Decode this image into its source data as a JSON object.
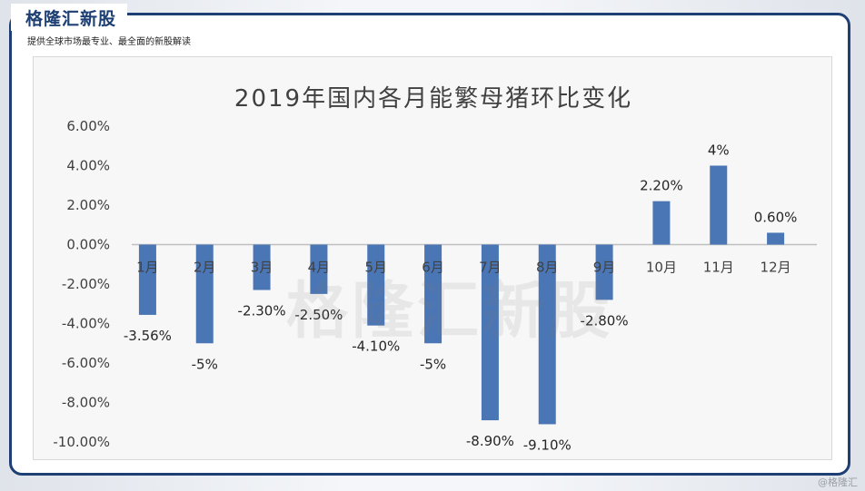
{
  "header": {
    "brand": "格隆汇新股",
    "subtitle": "提供全球市场最专业、最全面的新股解读"
  },
  "watermark": "格隆汇新股",
  "corner_watermark": "@格隆汇",
  "colors": {
    "bar": "#4a76b5",
    "frame": "#1d3f73",
    "axis": "#bfbfbf",
    "text": "#404040"
  },
  "chart_data": {
    "type": "bar",
    "title": "2019年国内各月能繁母猪环比变化",
    "categories": [
      "1月",
      "2月",
      "3月",
      "4月",
      "5月",
      "6月",
      "7月",
      "8月",
      "9月",
      "10月",
      "11月",
      "12月"
    ],
    "values": [
      -3.56,
      -5,
      -2.3,
      -2.5,
      -4.1,
      -5,
      -8.9,
      -9.1,
      -2.8,
      2.2,
      4,
      0.6
    ],
    "data_labels": [
      "-3.56%",
      "-5%",
      "-2.30%",
      "-2.50%",
      "-4.10%",
      "-5%",
      "-8.90%",
      "-9.10%",
      "-2.80%",
      "2.20%",
      "4%",
      "0.60%"
    ],
    "yticks": [
      "6.00%",
      "4.00%",
      "2.00%",
      "0.00%",
      "-2.00%",
      "-4.00%",
      "-6.00%",
      "-8.00%",
      "-10.00%"
    ],
    "ytick_values": [
      6,
      4,
      2,
      0,
      -2,
      -4,
      -6,
      -8,
      -10
    ],
    "ylim": [
      -10,
      6
    ],
    "xlabel": "",
    "ylabel": "",
    "legend": "none",
    "grid": false
  }
}
